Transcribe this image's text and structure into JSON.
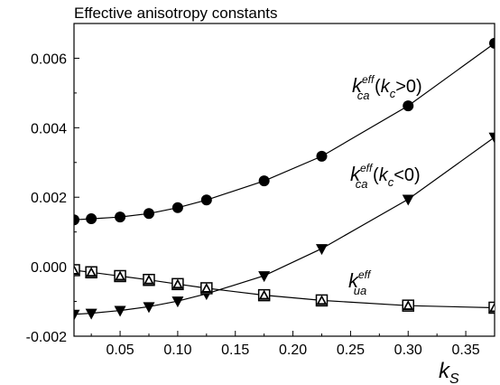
{
  "chart_data": {
    "type": "line",
    "title": "Effective anisotropy constants",
    "xlabel_main": "k",
    "xlabel_sub": "S",
    "ylabel": "",
    "xlim": [
      0.01,
      0.375
    ],
    "ylim": [
      -0.002,
      0.007
    ],
    "x_ticks": [
      0.05,
      0.1,
      0.15,
      0.2,
      0.25,
      0.3,
      0.35
    ],
    "x_tick_labels": [
      "0.05",
      "0.10",
      "0.15",
      "0.20",
      "0.25",
      "0.30",
      "0.35"
    ],
    "y_ticks": [
      -0.002,
      0.0,
      0.002,
      0.004,
      0.006
    ],
    "y_tick_labels": [
      "-0.002",
      "0.000",
      "0.002",
      "0.004",
      "0.006"
    ],
    "grid": false,
    "legend": "none",
    "series": [
      {
        "marker": "circle",
        "x": [
          0.01,
          0.025,
          0.05,
          0.075,
          0.1,
          0.125,
          0.175,
          0.225,
          0.3,
          0.375
        ],
        "y": [
          0.00135,
          0.00138,
          0.00143,
          0.00153,
          0.0017,
          0.00192,
          0.00247,
          0.00318,
          0.00463,
          0.00643
        ]
      },
      {
        "marker": "triangle-down",
        "x": [
          0.01,
          0.025,
          0.05,
          0.075,
          0.1,
          0.125,
          0.175,
          0.225,
          0.3,
          0.375
        ],
        "y": [
          -0.00137,
          -0.00134,
          -0.00126,
          -0.00115,
          -0.00099,
          -0.00078,
          -0.00026,
          0.00052,
          0.00194,
          0.00373
        ]
      },
      {
        "marker": "square",
        "x": [
          0.01,
          0.025,
          0.05,
          0.075,
          0.1,
          0.125,
          0.175,
          0.225,
          0.3,
          0.375
        ],
        "y": [
          -0.0001,
          -0.00016,
          -0.00027,
          -0.00038,
          -0.0005,
          -0.00062,
          -0.00082,
          -0.00097,
          -0.00112,
          -0.00118
        ]
      },
      {
        "marker": "triangle-up",
        "x": [
          0.01,
          0.025,
          0.05,
          0.075,
          0.1,
          0.125,
          0.175,
          0.225,
          0.3,
          0.375
        ],
        "y": [
          -0.0001,
          -0.00016,
          -0.00027,
          -0.00038,
          -0.0005,
          -0.00062,
          -0.00082,
          -0.00097,
          -0.00112,
          -0.00118
        ]
      }
    ],
    "annotations": [
      {
        "main": "k",
        "sub": "ca",
        "sup": "eff",
        "suffix_open": " (",
        "var": "k",
        "var_sub": "c",
        "cond": ">0)"
      },
      {
        "main": "k",
        "sub": "ca",
        "sup": "eff",
        "suffix_open": " (",
        "var": "k",
        "var_sub": "c",
        "cond": "<0)"
      },
      {
        "main": "k",
        "sub": "ua",
        "sup": "eff"
      }
    ]
  }
}
